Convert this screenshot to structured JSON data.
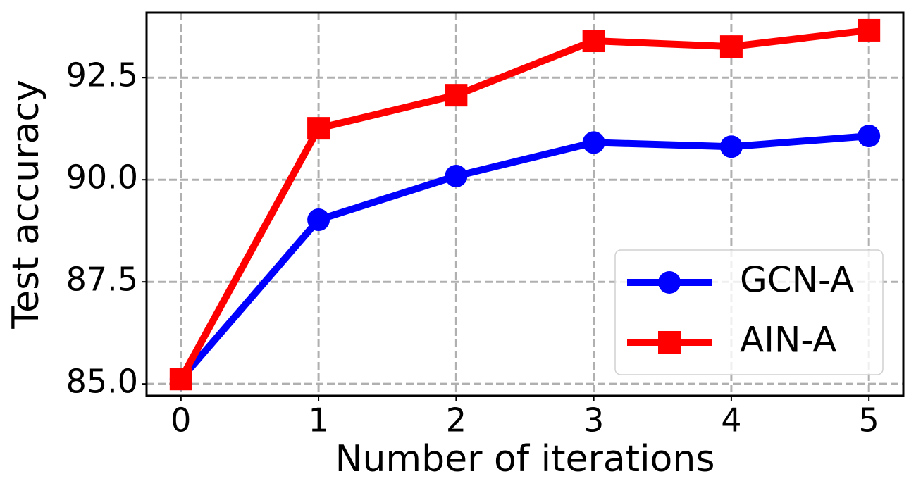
{
  "chart_data": {
    "type": "line",
    "x_label": "Number of iterations",
    "y_label": "Test accuracy",
    "x": [
      0,
      1,
      2,
      3,
      4,
      5
    ],
    "series": [
      {
        "name": "GCN-A",
        "color": "#0000ff",
        "marker": "circle",
        "values": [
          85.12,
          89.02,
          90.09,
          90.91,
          90.81,
          91.07
        ]
      },
      {
        "name": "AIN-A",
        "color": "#ff0000",
        "marker": "square",
        "values": [
          85.12,
          91.26,
          92.07,
          93.4,
          93.26,
          93.66
        ]
      }
    ],
    "xlim": [
      -0.25,
      5.25
    ],
    "xticks": [
      0,
      1,
      2,
      3,
      4,
      5
    ],
    "ylim": [
      84.71,
      94.09
    ],
    "yticks": [
      {
        "value": 85,
        "label": "85.0"
      },
      87.5,
      {
        "value": 90,
        "label": "90.0"
      },
      92.5
    ],
    "grid": true,
    "legend": "lower right"
  }
}
